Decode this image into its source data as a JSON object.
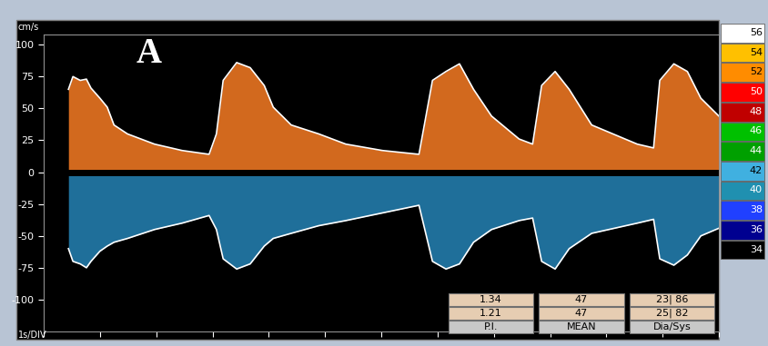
{
  "chart_data": {
    "type": "spectral_doppler",
    "panel_label": "A",
    "y_label": "cm/s",
    "x_label": "1s/DIV",
    "x": [
      0.44,
      0.52,
      0.65,
      0.76,
      0.84,
      1.0,
      1.13,
      1.25,
      1.49,
      1.97,
      2.46,
      2.94,
      3.07,
      3.19,
      3.43,
      3.67,
      3.92,
      4.08,
      4.4,
      4.89,
      5.37,
      6.02,
      6.67,
      6.91,
      7.15,
      7.39,
      7.64,
      7.96,
      8.45,
      8.69,
      8.85,
      9.09,
      9.34,
      9.74,
      10.55,
      10.84,
      10.95,
      11.2,
      11.44,
      11.68,
      12.0
    ],
    "series": [
      {
        "color": "#d2691e",
        "values": [
          65,
          75,
          72,
          73,
          66,
          58,
          51,
          37,
          30,
          22,
          17,
          14,
          30,
          72,
          86,
          82,
          68,
          51,
          37,
          30,
          22,
          17,
          14,
          72,
          79,
          85,
          65,
          44,
          26,
          22,
          68,
          79,
          65,
          37,
          22,
          19,
          72,
          85,
          79,
          58,
          44
        ]
      },
      {
        "color": "#1f6f9a",
        "values": [
          -60,
          -70,
          -72,
          -75,
          -70,
          -62,
          -58,
          -55,
          -52,
          -45,
          -40,
          -34,
          -45,
          -68,
          -76,
          -72,
          -58,
          -52,
          -48,
          -42,
          -38,
          -32,
          -26,
          -70,
          -76,
          -72,
          -55,
          -45,
          -38,
          -36,
          -70,
          -76,
          -60,
          -48,
          -40,
          -37,
          -68,
          -73,
          -65,
          -50,
          -44
        ]
      }
    ],
    "xlim": [
      0,
      12
    ],
    "xticks": [
      0,
      1,
      2,
      3,
      4,
      5,
      6,
      7,
      8,
      9,
      10,
      11,
      12
    ],
    "ylim": [
      -125,
      108
    ],
    "yticks": [
      100,
      75,
      50,
      25,
      0,
      -25,
      -50,
      -75,
      -100
    ],
    "tick_labels": "y",
    "color_scale": {
      "values": [
        56,
        54,
        52,
        50,
        48,
        46,
        44,
        42,
        40,
        38,
        36,
        34
      ],
      "colors": [
        "#ffffff",
        "#ffc000",
        "#ff8c00",
        "#ff0000",
        "#c00000",
        "#00c000",
        "#00a000",
        "#40b0e0",
        "#2090b0",
        "#2040ff",
        "#000090",
        "#000000"
      ]
    },
    "table": {
      "header": [
        "P.I.",
        "MEAN",
        "Dia/Sys"
      ],
      "rows": [
        [
          "1.34",
          "47",
          "23| 86"
        ],
        [
          "1.21",
          "47",
          "25| 82"
        ]
      ]
    }
  }
}
